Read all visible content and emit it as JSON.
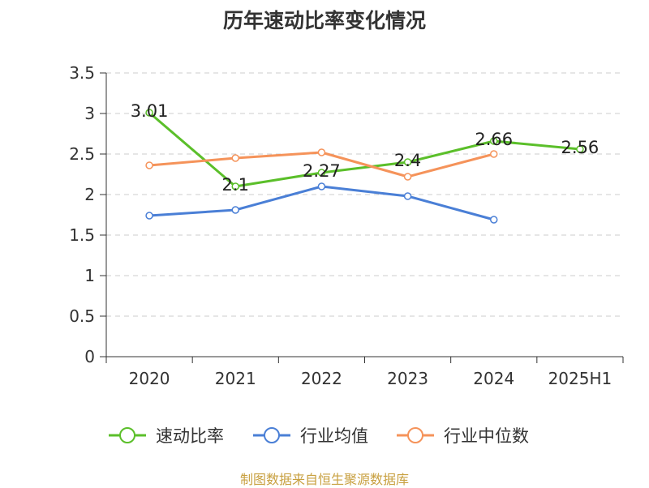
{
  "chart_data": {
    "type": "line",
    "title": "历年速动比率变化情况",
    "categories": [
      "2020",
      "2021",
      "2022",
      "2023",
      "2024",
      "2025H1"
    ],
    "series": [
      {
        "name": "速动比率",
        "color": "#5bbf2a",
        "values": [
          3.01,
          2.1,
          2.27,
          2.4,
          2.66,
          2.56
        ],
        "labels": [
          "3.01",
          "2.1",
          "2.27",
          "2.4",
          "2.66",
          "2.56"
        ]
      },
      {
        "name": "行业均值",
        "color": "#4a7fd6",
        "values": [
          1.74,
          1.81,
          2.1,
          1.98,
          1.69,
          null
        ]
      },
      {
        "name": "行业中位数",
        "color": "#f5935a",
        "values": [
          2.36,
          2.45,
          2.52,
          2.22,
          2.5,
          null
        ]
      }
    ],
    "yticks": [
      "0",
      "0.5",
      "1",
      "1.5",
      "2",
      "2.5",
      "3",
      "3.5"
    ],
    "ylim": [
      0,
      3.5
    ],
    "grid": true,
    "legend_position": "bottom"
  },
  "footer": "制图数据来自恒生聚源数据库"
}
